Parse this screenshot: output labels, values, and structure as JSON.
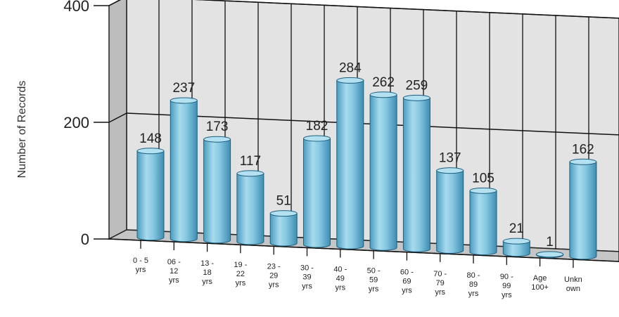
{
  "chart_data": {
    "type": "bar",
    "style": "3d-cylinder",
    "title": "",
    "xlabel": "",
    "ylabel": "Number of Records",
    "ylim": [
      0,
      400
    ],
    "yticks": [
      0,
      200,
      400
    ],
    "grid": true,
    "colors": {
      "bar": "#7fc4de",
      "bar_dark": "#3f8fb3",
      "bar_top": "#a9dcef",
      "wall": "#e2e2e2",
      "floor": "#c4c4c4"
    },
    "categories": [
      {
        "lines": [
          "0 - 5",
          "yrs"
        ]
      },
      {
        "lines": [
          "06 -",
          "12",
          "yrs"
        ]
      },
      {
        "lines": [
          "13 -",
          "18",
          "yrs"
        ]
      },
      {
        "lines": [
          "19 -",
          "22",
          "yrs"
        ]
      },
      {
        "lines": [
          "23 -",
          "29",
          "yrs"
        ]
      },
      {
        "lines": [
          "30 -",
          "39",
          "yrs"
        ]
      },
      {
        "lines": [
          "40 -",
          "49",
          "yrs"
        ]
      },
      {
        "lines": [
          "50 -",
          "59",
          "yrs"
        ]
      },
      {
        "lines": [
          "60 -",
          "69",
          "yrs"
        ]
      },
      {
        "lines": [
          "70 -",
          "79",
          "yrs"
        ]
      },
      {
        "lines": [
          "80 -",
          "89",
          "yrs"
        ]
      },
      {
        "lines": [
          "90 -",
          "99",
          "yrs"
        ]
      },
      {
        "lines": [
          "Age",
          "100+"
        ]
      },
      {
        "lines": [
          "Unkn",
          "own"
        ]
      }
    ],
    "values": [
      148,
      237,
      173,
      117,
      51,
      182,
      284,
      262,
      259,
      137,
      105,
      21,
      1,
      162
    ]
  }
}
